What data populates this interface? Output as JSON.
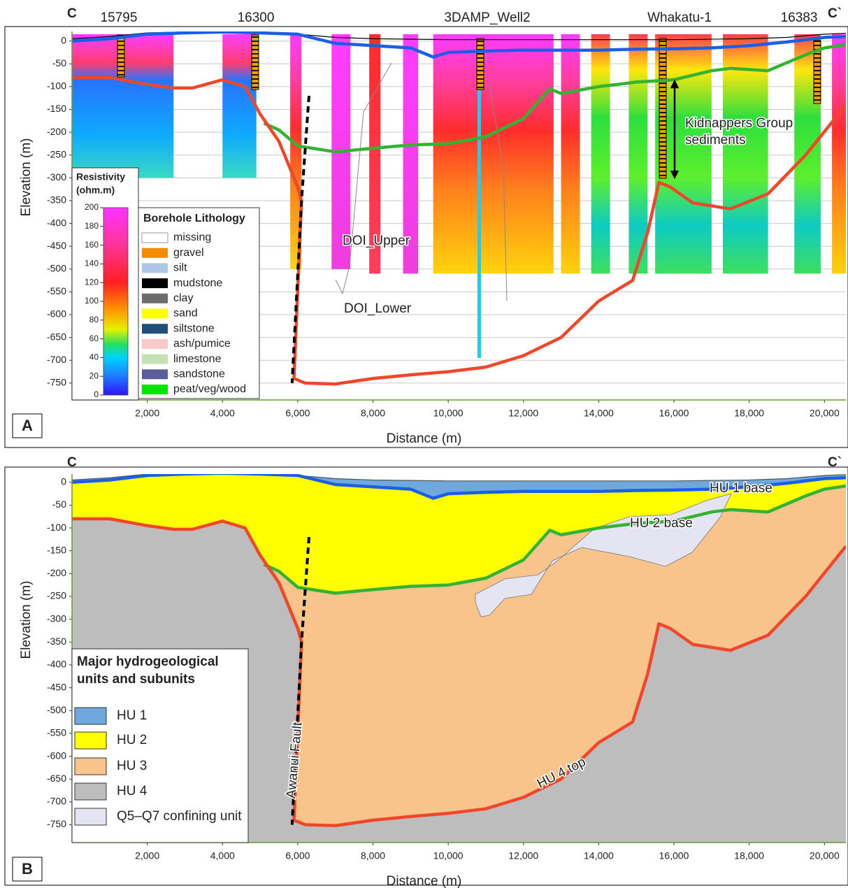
{
  "chart_data": [
    {
      "type": "line",
      "panel": "A",
      "left_end": "C",
      "right_end": "C`",
      "x_label": "Distance (m)",
      "y_label": "Elevation (m)",
      "xlim": [
        0,
        20570
      ],
      "ylim": [
        -787,
        21
      ],
      "xticks": [
        {
          "value": 2000,
          "label": "2,000"
        },
        {
          "value": 4000,
          "label": "4,000"
        },
        {
          "value": 6000,
          "label": "6,000"
        },
        {
          "value": 8000,
          "label": "8,000"
        },
        {
          "value": 10000,
          "label": "10,000"
        },
        {
          "value": 12000,
          "label": "12,000"
        },
        {
          "value": 14000,
          "label": "14,000"
        },
        {
          "value": 16000,
          "label": "16,000"
        },
        {
          "value": 18000,
          "label": "18,000"
        },
        {
          "value": 20000,
          "label": "20,000"
        }
      ],
      "yticks": [
        0,
        -50,
        -100,
        -150,
        -200,
        -250,
        -300,
        -350,
        -400,
        -450,
        -500,
        -550,
        -600,
        -650,
        -700,
        -750
      ],
      "grid": true,
      "surface": {
        "color": "#000000",
        "x": [
          0,
          1000,
          2000,
          3000,
          4000,
          5000,
          6000,
          7000,
          8000,
          10000,
          12000,
          14000,
          16000,
          18000,
          19000,
          20000,
          20570
        ],
        "values": [
          5,
          10,
          18,
          20,
          22,
          20,
          15,
          8,
          5,
          3,
          3,
          3,
          3,
          5,
          8,
          15,
          17
        ]
      },
      "series": [
        {
          "color": "#1a5fe6",
          "x": [
            0,
            1000,
            2000,
            3000,
            4000,
            5000,
            6000,
            7000,
            8000,
            9000,
            9600,
            10000,
            11000,
            12000,
            13000,
            14000,
            15000,
            16000,
            17000,
            18000,
            19000,
            20000,
            20570
          ],
          "values": [
            0,
            5,
            15,
            18,
            20,
            18,
            15,
            -5,
            -10,
            -15,
            -35,
            -25,
            -22,
            -20,
            -20,
            -20,
            -18,
            -17,
            -15,
            -10,
            -2,
            8,
            10
          ]
        },
        {
          "color": "#33b233",
          "x": [
            5100,
            5500,
            6000,
            7000,
            8000,
            9000,
            10000,
            11000,
            12000,
            12700,
            13000,
            14000,
            15000,
            16000,
            17000,
            17500,
            18500,
            19500,
            20000,
            20570
          ],
          "values": [
            -180,
            -195,
            -230,
            -243,
            -235,
            -228,
            -225,
            -210,
            -170,
            -105,
            -115,
            -100,
            -90,
            -85,
            -65,
            -60,
            -65,
            -30,
            -15,
            -8
          ]
        },
        {
          "color": "#f0462a",
          "x": [
            0,
            1000,
            2000,
            2700,
            3200,
            4000,
            4600,
            5000,
            5500,
            6000,
            6100,
            5900,
            6200,
            7000,
            8000,
            9000,
            10000,
            11000,
            12000,
            13000,
            14000,
            14900,
            15300,
            15600,
            15900,
            16500,
            17500,
            18500,
            19500,
            20570
          ],
          "values": [
            -80,
            -80,
            -95,
            -103,
            -103,
            -85,
            -100,
            -160,
            -220,
            -320,
            -350,
            -740,
            -750,
            -752,
            -740,
            -732,
            -725,
            -715,
            -690,
            -650,
            -570,
            -525,
            -420,
            -310,
            -320,
            -355,
            -368,
            -335,
            -250,
            -140
          ]
        }
      ],
      "fault": {
        "color": "#000000",
        "x": [
          6300,
          6100,
          5850
        ],
        "values": [
          -120,
          -350,
          -750
        ]
      },
      "wells": [
        "15795",
        "16300",
        "3DAMP_Well2",
        "Whakatu-1",
        "16383"
      ],
      "annotations": [
        "DOI_Upper",
        "DOI_Lower",
        "Kidnappers Group",
        "sediments"
      ],
      "colorbar": {
        "title": [
          "Resistivity",
          "(ohm.m)"
        ],
        "lim": [
          0,
          200
        ],
        "ticks": [
          0,
          20,
          40,
          60,
          80,
          100,
          120,
          140,
          160,
          180,
          200
        ]
      },
      "legend": {
        "title": "Borehole Lithology",
        "items": [
          {
            "name": "missing",
            "color": "#ffffff"
          },
          {
            "name": "gravel",
            "color": "#f28c00"
          },
          {
            "name": "silt",
            "color": "#aec6e8"
          },
          {
            "name": "mudstone",
            "color": "#000000"
          },
          {
            "name": "clay",
            "color": "#6d6d6d"
          },
          {
            "name": "sand",
            "color": "#ffff00"
          },
          {
            "name": "siltstone",
            "color": "#1f4e79"
          },
          {
            "name": "ash/pumice",
            "color": "#f9c8c8"
          },
          {
            "name": "limestone",
            "color": "#c5e0b4"
          },
          {
            "name": "sandstone",
            "color": "#5c5c9c"
          },
          {
            "name": "peat/veg/wood",
            "color": "#00e600"
          }
        ]
      }
    },
    {
      "type": "area",
      "panel": "B",
      "left_end": "C",
      "right_end": "C`",
      "x_label": "Distance (m)",
      "y_label": "Elevation (m)",
      "xlim": [
        0,
        20570
      ],
      "ylim": [
        -789,
        18
      ],
      "xticks": [
        {
          "value": 2000,
          "label": "2,000"
        },
        {
          "value": 4000,
          "label": "4,000"
        },
        {
          "value": 6000,
          "label": "6,000"
        },
        {
          "value": 8000,
          "label": "8,000"
        },
        {
          "value": 10000,
          "label": "10,000"
        },
        {
          "value": 12000,
          "label": "12,000"
        },
        {
          "value": 14000,
          "label": "14,000"
        },
        {
          "value": 16000,
          "label": "16,000"
        },
        {
          "value": 18000,
          "label": "18,000"
        },
        {
          "value": 20000,
          "label": "20,000"
        }
      ],
      "yticks": [
        0,
        -50,
        -100,
        -150,
        -200,
        -250,
        -300,
        -350,
        -400,
        -450,
        -500,
        -550,
        -600,
        -650,
        -700,
        -750
      ],
      "grid": false,
      "surface": {
        "color": "#555555",
        "x": [
          0,
          1000,
          2000,
          3000,
          4000,
          5000,
          6000,
          7000,
          8000,
          10000,
          12000,
          14000,
          16000,
          18000,
          19000,
          20000,
          20570
        ],
        "values": [
          5,
          10,
          18,
          20,
          22,
          20,
          15,
          8,
          5,
          3,
          3,
          3,
          3,
          5,
          8,
          15,
          17
        ]
      },
      "series": [
        {
          "name": "HU 1 base",
          "color": "#1a5fe6",
          "x": [
            0,
            1000,
            2000,
            3000,
            4000,
            5000,
            6000,
            7000,
            8000,
            9000,
            9600,
            10000,
            11000,
            12000,
            13000,
            14000,
            15000,
            16000,
            17000,
            18000,
            19000,
            20000,
            20570
          ],
          "values": [
            0,
            5,
            15,
            18,
            20,
            18,
            15,
            -5,
            -10,
            -15,
            -35,
            -25,
            -22,
            -20,
            -20,
            -20,
            -18,
            -17,
            -15,
            -10,
            -2,
            8,
            10
          ]
        },
        {
          "name": "HU 2 base",
          "color": "#33b233",
          "x": [
            5100,
            5500,
            6000,
            7000,
            8000,
            9000,
            10000,
            11000,
            12000,
            12700,
            13000,
            14000,
            15000,
            16000,
            17000,
            17500,
            18500,
            19500,
            20000,
            20570
          ],
          "values": [
            -180,
            -195,
            -230,
            -243,
            -235,
            -228,
            -225,
            -210,
            -170,
            -105,
            -115,
            -100,
            -90,
            -85,
            -65,
            -60,
            -65,
            -30,
            -15,
            -8
          ]
        },
        {
          "name": "HU 4 top",
          "color": "#f0462a",
          "x": [
            0,
            1000,
            2000,
            2700,
            3200,
            4000,
            4600,
            5000,
            5500,
            6000,
            6100,
            5900,
            6200,
            7000,
            8000,
            9000,
            10000,
            11000,
            12000,
            13000,
            14000,
            14900,
            15300,
            15600,
            15900,
            16500,
            17500,
            18500,
            19500,
            20570
          ],
          "values": [
            -80,
            -80,
            -95,
            -103,
            -103,
            -85,
            -100,
            -160,
            -220,
            -320,
            -350,
            -740,
            -750,
            -752,
            -740,
            -732,
            -725,
            -715,
            -690,
            -650,
            -570,
            -525,
            -420,
            -310,
            -320,
            -355,
            -368,
            -335,
            -250,
            -140
          ]
        }
      ],
      "fault": {
        "name": "Awanui Fault",
        "color": "#000000",
        "x": [
          6300,
          6100,
          5850
        ],
        "values": [
          -120,
          -350,
          -750
        ]
      },
      "legend": {
        "title": [
          "Major hydrogeological",
          "units and subunits"
        ],
        "items": [
          {
            "name": "HU 1",
            "color": "#6fa8dc"
          },
          {
            "name": "HU 2",
            "color": "#ffff00"
          },
          {
            "name": "HU 3",
            "color": "#f9c48b"
          },
          {
            "name": "HU 4",
            "color": "#bdbdbd"
          },
          {
            "name": "Q5–Q7 confining unit",
            "color": "#e4e4f2"
          }
        ]
      }
    }
  ]
}
